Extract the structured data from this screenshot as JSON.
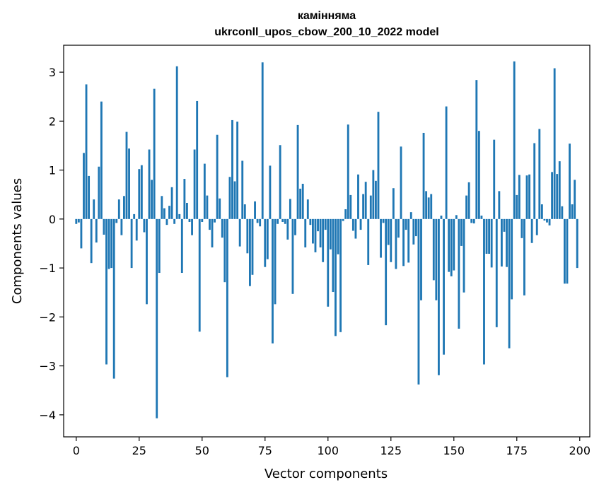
{
  "chart_data": {
    "type": "bar",
    "title_line1": "камінняма",
    "title_line2": "ukrconll_upos_cbow_200_10_2022 model",
    "xlabel": "Vector components",
    "ylabel": "Components values",
    "xlim": [
      -5,
      204
    ],
    "ylim": [
      -4.45,
      3.55
    ],
    "xticks": [
      0,
      25,
      50,
      75,
      100,
      125,
      150,
      175,
      200
    ],
    "yticks": [
      3,
      2,
      1,
      0,
      -1,
      -2,
      -3,
      -4
    ],
    "ytick_labels": [
      "3",
      "2",
      "1",
      "0",
      "−1",
      "−2",
      "−3",
      "−4"
    ],
    "bar_color": "#1f77b4",
    "x": [
      0,
      1,
      2,
      3,
      4,
      5,
      6,
      7,
      8,
      9,
      10,
      11,
      12,
      13,
      14,
      15,
      16,
      17,
      18,
      19,
      20,
      21,
      22,
      23,
      24,
      25,
      26,
      27,
      28,
      29,
      30,
      31,
      32,
      33,
      34,
      35,
      36,
      37,
      38,
      39,
      40,
      41,
      42,
      43,
      44,
      45,
      46,
      47,
      48,
      49,
      50,
      51,
      52,
      53,
      54,
      55,
      56,
      57,
      58,
      59,
      60,
      61,
      62,
      63,
      64,
      65,
      66,
      67,
      68,
      69,
      70,
      71,
      72,
      73,
      74,
      75,
      76,
      77,
      78,
      79,
      80,
      81,
      82,
      83,
      84,
      85,
      86,
      87,
      88,
      89,
      90,
      91,
      92,
      93,
      94,
      95,
      96,
      97,
      98,
      99,
      100,
      101,
      102,
      103,
      104,
      105,
      106,
      107,
      108,
      109,
      110,
      111,
      112,
      113,
      114,
      115,
      116,
      117,
      118,
      119,
      120,
      121,
      122,
      123,
      124,
      125,
      126,
      127,
      128,
      129,
      130,
      131,
      132,
      133,
      134,
      135,
      136,
      137,
      138,
      139,
      140,
      141,
      142,
      143,
      144,
      145,
      146,
      147,
      148,
      149,
      150,
      151,
      152,
      153,
      154,
      155,
      156,
      157,
      158,
      159,
      160,
      161,
      162,
      163,
      164,
      165,
      166,
      167,
      168,
      169,
      170,
      171,
      172,
      173,
      174,
      175,
      176,
      177,
      178,
      179,
      180,
      181,
      182,
      183,
      184,
      185,
      186,
      187,
      188,
      189,
      190,
      191,
      192,
      193,
      194,
      195,
      196,
      197,
      198,
      199
    ],
    "values": [
      -0.1,
      -0.07,
      -0.6,
      1.35,
      2.75,
      0.88,
      -0.9,
      0.4,
      -0.48,
      1.07,
      2.4,
      -0.32,
      -2.97,
      -1.02,
      -1.0,
      -3.26,
      -0.08,
      0.4,
      -0.33,
      0.47,
      1.78,
      1.44,
      -1.0,
      0.1,
      -0.44,
      1.02,
      1.1,
      -0.27,
      -1.74,
      1.42,
      0.8,
      2.66,
      -4.07,
      -1.1,
      0.47,
      0.22,
      -0.12,
      0.27,
      0.65,
      -0.1,
      3.12,
      0.1,
      -1.1,
      0.82,
      0.33,
      -0.06,
      -0.33,
      1.42,
      2.41,
      -2.3,
      -0.06,
      1.13,
      0.48,
      -0.22,
      -0.58,
      -0.07,
      1.72,
      0.42,
      -0.38,
      -1.29,
      -3.23,
      0.86,
      2.02,
      0.77,
      1.99,
      -0.56,
      1.19,
      0.3,
      -0.7,
      -1.37,
      -1.14,
      0.36,
      -0.08,
      -0.15,
      3.2,
      -0.98,
      -0.82,
      1.09,
      -2.54,
      -1.74,
      -0.1,
      1.51,
      -0.06,
      -0.1,
      -0.42,
      0.41,
      -1.53,
      -0.33,
      1.92,
      0.62,
      0.72,
      -0.58,
      0.4,
      -0.12,
      -0.5,
      -0.68,
      -0.25,
      -0.58,
      -0.88,
      -0.22,
      -1.79,
      -0.62,
      -1.49,
      -2.39,
      -0.72,
      -2.31,
      -0.04,
      0.2,
      1.93,
      0.49,
      -0.24,
      -0.4,
      0.91,
      -0.22,
      0.51,
      0.76,
      -0.94,
      0.48,
      1.0,
      0.78,
      2.19,
      -0.79,
      -0.08,
      -2.17,
      -0.53,
      -0.88,
      0.63,
      -1.02,
      -0.38,
      1.48,
      -0.96,
      -0.22,
      -0.89,
      0.14,
      -0.52,
      -0.35,
      -3.38,
      -1.66,
      1.76,
      0.57,
      0.44,
      0.51,
      -1.25,
      -1.66,
      -3.19,
      0.07,
      -2.77,
      2.3,
      -1.08,
      -1.17,
      -1.05,
      0.08,
      -2.24,
      -0.55,
      -1.5,
      0.48,
      0.75,
      -0.08,
      -0.09,
      2.84,
      1.8,
      0.07,
      -2.97,
      -0.71,
      -0.71,
      -0.99,
      1.62,
      -2.21,
      0.57,
      -0.97,
      -0.26,
      -0.98,
      -2.64,
      -1.64,
      3.22,
      0.49,
      0.9,
      -0.39,
      -1.56,
      0.89,
      0.91,
      -0.49,
      1.55,
      -0.33,
      1.84,
      0.3,
      -0.03,
      -0.07,
      -0.13,
      0.96,
      3.08,
      0.92,
      1.18,
      0.26,
      -1.32,
      -1.32,
      1.54,
      0.3,
      0.8,
      -1.0
    ]
  }
}
